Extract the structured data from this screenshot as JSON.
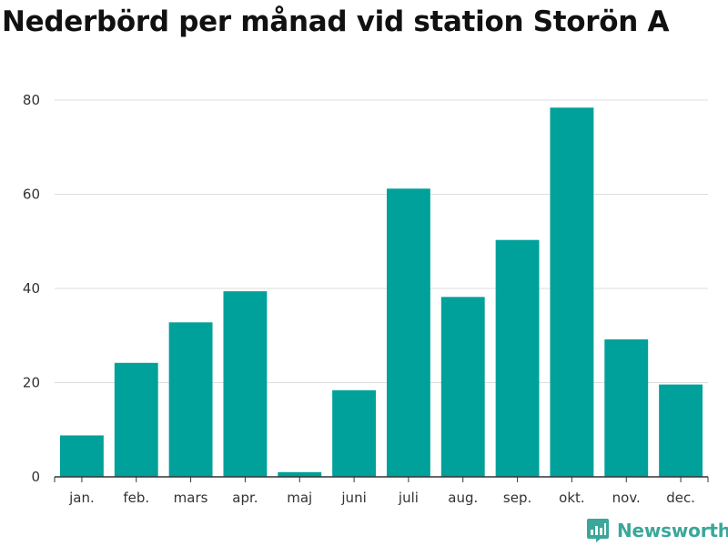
{
  "colors": {
    "bar": "#00a19a",
    "grid": "#dddddd",
    "axis": "#333333",
    "brand": "#3aa79a"
  },
  "brand": {
    "name": "Newsworthy",
    "icon": "chart-bubble-icon"
  },
  "chart_data": {
    "type": "bar",
    "title": "Nederbörd per månad vid station Storön A",
    "xlabel": "",
    "ylabel": "",
    "categories": [
      "jan.",
      "feb.",
      "mars",
      "apr.",
      "maj",
      "juni",
      "juli",
      "aug.",
      "sep.",
      "okt.",
      "nov.",
      "dec."
    ],
    "values": [
      8.8,
      24.2,
      32.8,
      39.4,
      1.0,
      18.4,
      61.2,
      38.2,
      50.3,
      78.4,
      29.2,
      19.6
    ],
    "ylim": [
      0,
      80
    ],
    "yticks": [
      0,
      20,
      40,
      60,
      80
    ],
    "grid": true,
    "legend": "none"
  }
}
